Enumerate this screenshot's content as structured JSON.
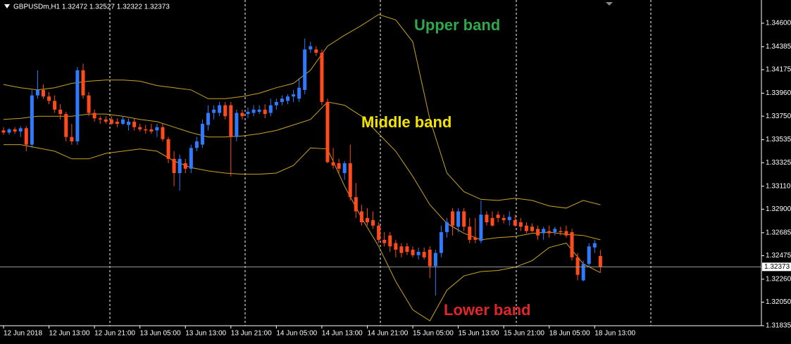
{
  "chart_data": {
    "type": "candlestick",
    "title": "GBPUSDm,H1 1.32472 1.32527 1.32322 1.32373",
    "categories": [
      "12 Jun 2018",
      null,
      null,
      null,
      null,
      null,
      null,
      null,
      "12 Jun 13:00",
      null,
      null,
      null,
      null,
      null,
      null,
      null,
      "12 Jun 21:00",
      null,
      null,
      null,
      null,
      null,
      null,
      null,
      "13 Jun 05:00",
      null,
      null,
      null,
      null,
      null,
      null,
      null,
      "13 Jun 13:00",
      null,
      null,
      null,
      null,
      null,
      null,
      null,
      "13 Jun 21:00",
      null,
      null,
      null,
      null,
      null,
      null,
      null,
      "14 Jun 05:00",
      null,
      null,
      null,
      null,
      null,
      null,
      null,
      "14 Jun 13:00",
      null,
      null,
      null,
      null,
      null,
      null,
      null,
      "14 Jun 21:00",
      null,
      null,
      null,
      null,
      null,
      null,
      null,
      "15 Jun 05:00",
      null,
      null,
      null,
      null,
      null,
      null,
      null,
      "15 Jun 13:00",
      null,
      null,
      null,
      null,
      null,
      null,
      null,
      "15 Jun 21:00",
      null,
      null,
      null,
      null,
      null,
      null,
      null,
      "18 Jun 05:00",
      null,
      null,
      null,
      null,
      null,
      null,
      null,
      "18 Jun 13:00",
      null
    ],
    "open": [
      1.3362,
      1.336,
      1.3363,
      1.3361,
      1.3364,
      1.3349,
      1.3394,
      1.3399,
      1.3393,
      1.3389,
      1.3381,
      1.3377,
      1.3356,
      1.3352,
      1.3417,
      1.3394,
      1.3378,
      1.3373,
      1.3372,
      1.3372,
      1.337,
      1.3368,
      1.3367,
      1.337,
      1.3365,
      1.3363,
      1.3363,
      1.3362,
      1.3365,
      1.3354,
      1.3336,
      1.3323,
      1.3332,
      1.3327,
      1.3346,
      1.3349,
      1.3367,
      1.3378,
      1.3378,
      1.3385,
      1.3385,
      1.3356,
      1.3378,
      1.3377,
      1.3378,
      1.3379,
      1.3381,
      1.3378,
      1.3385,
      1.3388,
      1.3389,
      1.3393,
      1.3391,
      1.3399,
      1.3436,
      1.3436,
      1.3433,
      1.3388,
      1.3333,
      1.3332,
      1.3323,
      1.3332,
      1.3301,
      1.3288,
      1.3282,
      1.328,
      1.3275,
      1.3262,
      1.3266,
      1.3259,
      1.3256,
      1.3256,
      1.3253,
      1.3248,
      1.3251,
      1.3253,
      1.3238,
      1.325,
      1.3269,
      1.3288,
      1.3274,
      1.3288,
      1.3274,
      1.3264,
      1.3261,
      1.3285,
      1.3282,
      1.3285,
      1.3282,
      1.328,
      1.328,
      1.3278,
      1.3275,
      1.3274,
      1.3272,
      1.3268,
      1.327,
      1.3269,
      1.327,
      1.327,
      1.3269,
      1.3246,
      1.3225,
      1.324,
      1.3255,
      1.32472
    ],
    "high": [
      1.3365,
      1.3364,
      1.3365,
      1.3366,
      1.3366,
      1.3399,
      1.3417,
      1.3404,
      1.3397,
      1.3394,
      1.3386,
      1.3379,
      1.3368,
      1.342,
      1.3423,
      1.3397,
      1.3381,
      1.3375,
      1.3375,
      1.3375,
      1.3373,
      1.3375,
      1.3373,
      1.3373,
      1.3368,
      1.3367,
      1.3368,
      1.3368,
      1.3368,
      1.3356,
      1.3343,
      1.334,
      1.3336,
      1.3349,
      1.3356,
      1.3372,
      1.3385,
      1.3385,
      1.3388,
      1.3388,
      1.3388,
      1.3381,
      1.3381,
      1.3383,
      1.3385,
      1.3385,
      1.3386,
      1.3391,
      1.3391,
      1.3394,
      1.3395,
      1.3399,
      1.341,
      1.3446,
      1.3443,
      1.3439,
      1.3436,
      1.3391,
      1.3346,
      1.3336,
      1.3334,
      1.3349,
      1.3314,
      1.3294,
      1.3291,
      1.3288,
      1.3278,
      1.3269,
      1.3269,
      1.3262,
      1.3259,
      1.3259,
      1.3256,
      1.3255,
      1.3255,
      1.3256,
      1.3253,
      1.3275,
      1.3282,
      1.3291,
      1.3291,
      1.3291,
      1.3282,
      1.3282,
      1.3298,
      1.3288,
      1.3288,
      1.3288,
      1.3285,
      1.3288,
      1.3285,
      1.3282,
      1.3278,
      1.3277,
      1.3275,
      1.3274,
      1.3275,
      1.3274,
      1.3274,
      1.3275,
      1.3272,
      1.325,
      1.3243,
      1.3259,
      1.3262,
      1.32527
    ],
    "low": [
      1.3358,
      1.3358,
      1.3359,
      1.3356,
      1.3343,
      1.3346,
      1.3391,
      1.3391,
      1.3386,
      1.3378,
      1.3372,
      1.3352,
      1.3349,
      1.3349,
      1.3391,
      1.3375,
      1.337,
      1.3368,
      1.3368,
      1.3367,
      1.3365,
      1.3367,
      1.3362,
      1.3362,
      1.3361,
      1.3359,
      1.3359,
      1.3356,
      1.3352,
      1.3332,
      1.3311,
      1.3307,
      1.3323,
      1.3323,
      1.3343,
      1.3346,
      1.3362,
      1.3372,
      1.3375,
      1.3372,
      1.332,
      1.3352,
      1.3372,
      1.3373,
      1.3375,
      1.3377,
      1.3373,
      1.3375,
      1.3381,
      1.3385,
      1.3386,
      1.3388,
      1.3388,
      1.3395,
      1.3433,
      1.343,
      1.3385,
      1.3332,
      1.3327,
      1.3323,
      1.3317,
      1.3298,
      1.3282,
      1.3275,
      1.3275,
      1.3272,
      1.3259,
      1.3256,
      1.3251,
      1.3246,
      1.3246,
      1.3248,
      1.3246,
      1.3244,
      1.3244,
      1.3227,
      1.3211,
      1.3246,
      1.3264,
      1.3266,
      1.3269,
      1.327,
      1.3259,
      1.3259,
      1.3259,
      1.3275,
      1.3274,
      1.3278,
      1.3277,
      1.3275,
      1.3274,
      1.327,
      1.3268,
      1.3269,
      1.3262,
      1.3262,
      1.3264,
      1.3266,
      1.3266,
      1.3264,
      1.3243,
      1.3225,
      1.3224,
      1.3237,
      1.325,
      1.32322
    ],
    "close": [
      1.336,
      1.3363,
      1.3361,
      1.3364,
      1.3349,
      1.3394,
      1.3399,
      1.3393,
      1.3389,
      1.3381,
      1.3377,
      1.3356,
      1.3352,
      1.3417,
      1.3394,
      1.3378,
      1.3373,
      1.3372,
      1.337,
      1.3368,
      1.3368,
      1.3372,
      1.337,
      1.3365,
      1.3363,
      1.3362,
      1.3361,
      1.3365,
      1.3354,
      1.3336,
      1.3323,
      1.3336,
      1.3327,
      1.3346,
      1.3352,
      1.3368,
      1.3378,
      1.3381,
      1.3385,
      1.3375,
      1.3356,
      1.3378,
      1.3375,
      1.3379,
      1.3381,
      1.3381,
      1.3377,
      1.3385,
      1.3388,
      1.3391,
      1.3393,
      1.3395,
      1.3401,
      1.3436,
      1.3439,
      1.3433,
      1.3388,
      1.3333,
      1.333,
      1.3327,
      1.3332,
      1.3301,
      1.3288,
      1.3278,
      1.3278,
      1.3275,
      1.3262,
      1.3259,
      1.3256,
      1.3253,
      1.325,
      1.3251,
      1.3248,
      1.3251,
      1.3246,
      1.3238,
      1.325,
      1.3269,
      1.3278,
      1.3275,
      1.3288,
      1.3274,
      1.3262,
      1.3262,
      1.3285,
      1.3278,
      1.3275,
      1.3282,
      1.328,
      1.3283,
      1.3275,
      1.3274,
      1.327,
      1.327,
      1.3266,
      1.3272,
      1.3268,
      1.3272,
      1.3269,
      1.3266,
      1.3246,
      1.323,
      1.324,
      1.3256,
      1.3259,
      1.32373
    ],
    "up_color": "#2f7bff",
    "down_color": "#ff4a1c",
    "series": [
      {
        "name": "Upper band",
        "color": "#c9a227",
        "x": [
          0,
          3,
          6,
          9,
          12,
          15,
          18,
          21,
          24,
          27,
          30,
          33,
          36,
          39,
          42,
          45,
          48,
          51,
          54,
          57,
          60,
          63,
          66,
          69,
          72,
          75,
          78,
          81,
          84,
          87,
          90,
          93,
          96,
          99,
          102,
          105
        ],
        "values": [
          1.3404,
          1.3401,
          1.3399,
          1.3401,
          1.3405,
          1.3407,
          1.3408,
          1.3408,
          1.3407,
          1.3403,
          1.3401,
          1.3399,
          1.3391,
          1.3391,
          1.3393,
          1.3396,
          1.3401,
          1.3405,
          1.3417,
          1.3439,
          1.3449,
          1.3458,
          1.3468,
          1.3463,
          1.3443,
          1.3372,
          1.3323,
          1.3306,
          1.3299,
          1.3298,
          1.33,
          1.3298,
          1.3293,
          1.3291,
          1.3298,
          1.3294
        ]
      },
      {
        "name": "Middle band",
        "color": "#c9a227",
        "x": [
          0,
          3,
          6,
          9,
          12,
          15,
          18,
          21,
          24,
          27,
          30,
          33,
          36,
          39,
          42,
          45,
          48,
          51,
          54,
          57,
          60,
          63,
          66,
          69,
          72,
          75,
          78,
          81,
          84,
          87,
          90,
          93,
          96,
          99,
          102,
          105
        ],
        "values": [
          1.3372,
          1.3373,
          1.3375,
          1.3375,
          1.3375,
          1.3377,
          1.3377,
          1.3375,
          1.3372,
          1.337,
          1.3365,
          1.336,
          1.3356,
          1.3356,
          1.3357,
          1.3359,
          1.3362,
          1.3367,
          1.3372,
          1.3388,
          1.3385,
          1.3375,
          1.3359,
          1.3343,
          1.332,
          1.3294,
          1.3277,
          1.3268,
          1.3262,
          1.3264,
          1.3265,
          1.3268,
          1.3269,
          1.3267,
          1.3266,
          1.3262
        ]
      },
      {
        "name": "Lower band",
        "color": "#c9a227",
        "x": [
          0,
          3,
          6,
          9,
          12,
          15,
          18,
          21,
          24,
          27,
          30,
          33,
          36,
          39,
          42,
          45,
          48,
          51,
          54,
          57,
          60,
          63,
          66,
          69,
          72,
          75,
          78,
          81,
          84,
          87,
          90,
          93,
          96,
          99,
          102,
          105
        ],
        "values": [
          1.3349,
          1.3349,
          1.3346,
          1.3343,
          1.3336,
          1.3336,
          1.3341,
          1.3343,
          1.3345,
          1.3343,
          1.3334,
          1.3328,
          1.3325,
          1.3323,
          1.3322,
          1.3322,
          1.3323,
          1.333,
          1.3346,
          1.3345,
          1.3311,
          1.3282,
          1.3256,
          1.3224,
          1.3198,
          1.3188,
          1.3216,
          1.3229,
          1.3233,
          1.3234,
          1.3237,
          1.3243,
          1.3255,
          1.3259,
          1.324,
          1.3232
        ]
      }
    ],
    "ylim": [
      1.31835,
      1.34812
    ],
    "yticks": [
      {
        "value": 1.346,
        "label": "1.34600"
      },
      {
        "value": 1.34385,
        "label": "1.34385"
      },
      {
        "value": 1.34175,
        "label": "1.34175"
      },
      {
        "value": 1.3396,
        "label": "1.33960"
      },
      {
        "value": 1.3375,
        "label": "1.33750"
      },
      {
        "value": 1.33535,
        "label": "1.33535"
      },
      {
        "value": 1.33325,
        "label": "1.33325"
      },
      {
        "value": 1.3311,
        "label": "1.33110"
      },
      {
        "value": 1.329,
        "label": "1.32900"
      },
      {
        "value": 1.32685,
        "label": "1.32685"
      },
      {
        "value": 1.32475,
        "label": "1.32475"
      },
      {
        "value": 1.3226,
        "label": "1.32260"
      },
      {
        "value": 1.3205,
        "label": "1.32050"
      },
      {
        "value": 1.31835,
        "label": "1.31835"
      }
    ]
  }
}
